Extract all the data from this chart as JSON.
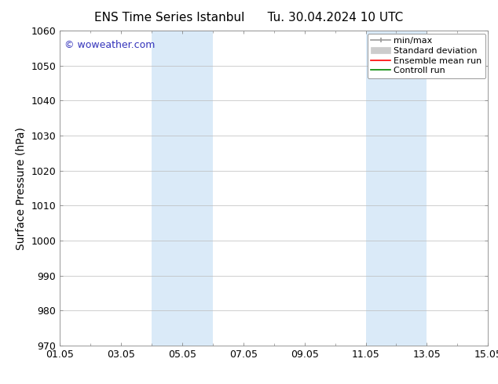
{
  "title_left": "ENS Time Series Istanbul",
  "title_right": "Tu. 30.04.2024 10 UTC",
  "ylabel": "Surface Pressure (hPa)",
  "ylim": [
    970,
    1060
  ],
  "yticks": [
    970,
    980,
    990,
    1000,
    1010,
    1020,
    1030,
    1040,
    1050,
    1060
  ],
  "xtick_labels": [
    "01.05",
    "03.05",
    "05.05",
    "07.05",
    "09.05",
    "11.05",
    "13.05",
    "15.05"
  ],
  "xtick_positions": [
    0,
    2,
    4,
    6,
    8,
    10,
    12,
    14
  ],
  "xlim": [
    0,
    14
  ],
  "shaded_regions": [
    {
      "x_start": 3.0,
      "x_end": 5.0
    },
    {
      "x_start": 10.0,
      "x_end": 12.0
    }
  ],
  "shaded_color": "#daeaf8",
  "watermark_text": "© woweather.com",
  "watermark_color": "#3333bb",
  "legend_entries": [
    "min/max",
    "Standard deviation",
    "Ensemble mean run",
    "Controll run"
  ],
  "legend_line_color_0": "#999999",
  "legend_fill_color_1": "#cccccc",
  "legend_line_color_2": "#ff0000",
  "legend_line_color_3": "#008800",
  "bg_color": "#ffffff",
  "grid_color": "#bbbbbb",
  "spine_color": "#888888",
  "title_fontsize": 11,
  "axis_label_fontsize": 10,
  "tick_fontsize": 9,
  "legend_fontsize": 8,
  "watermark_fontsize": 9
}
